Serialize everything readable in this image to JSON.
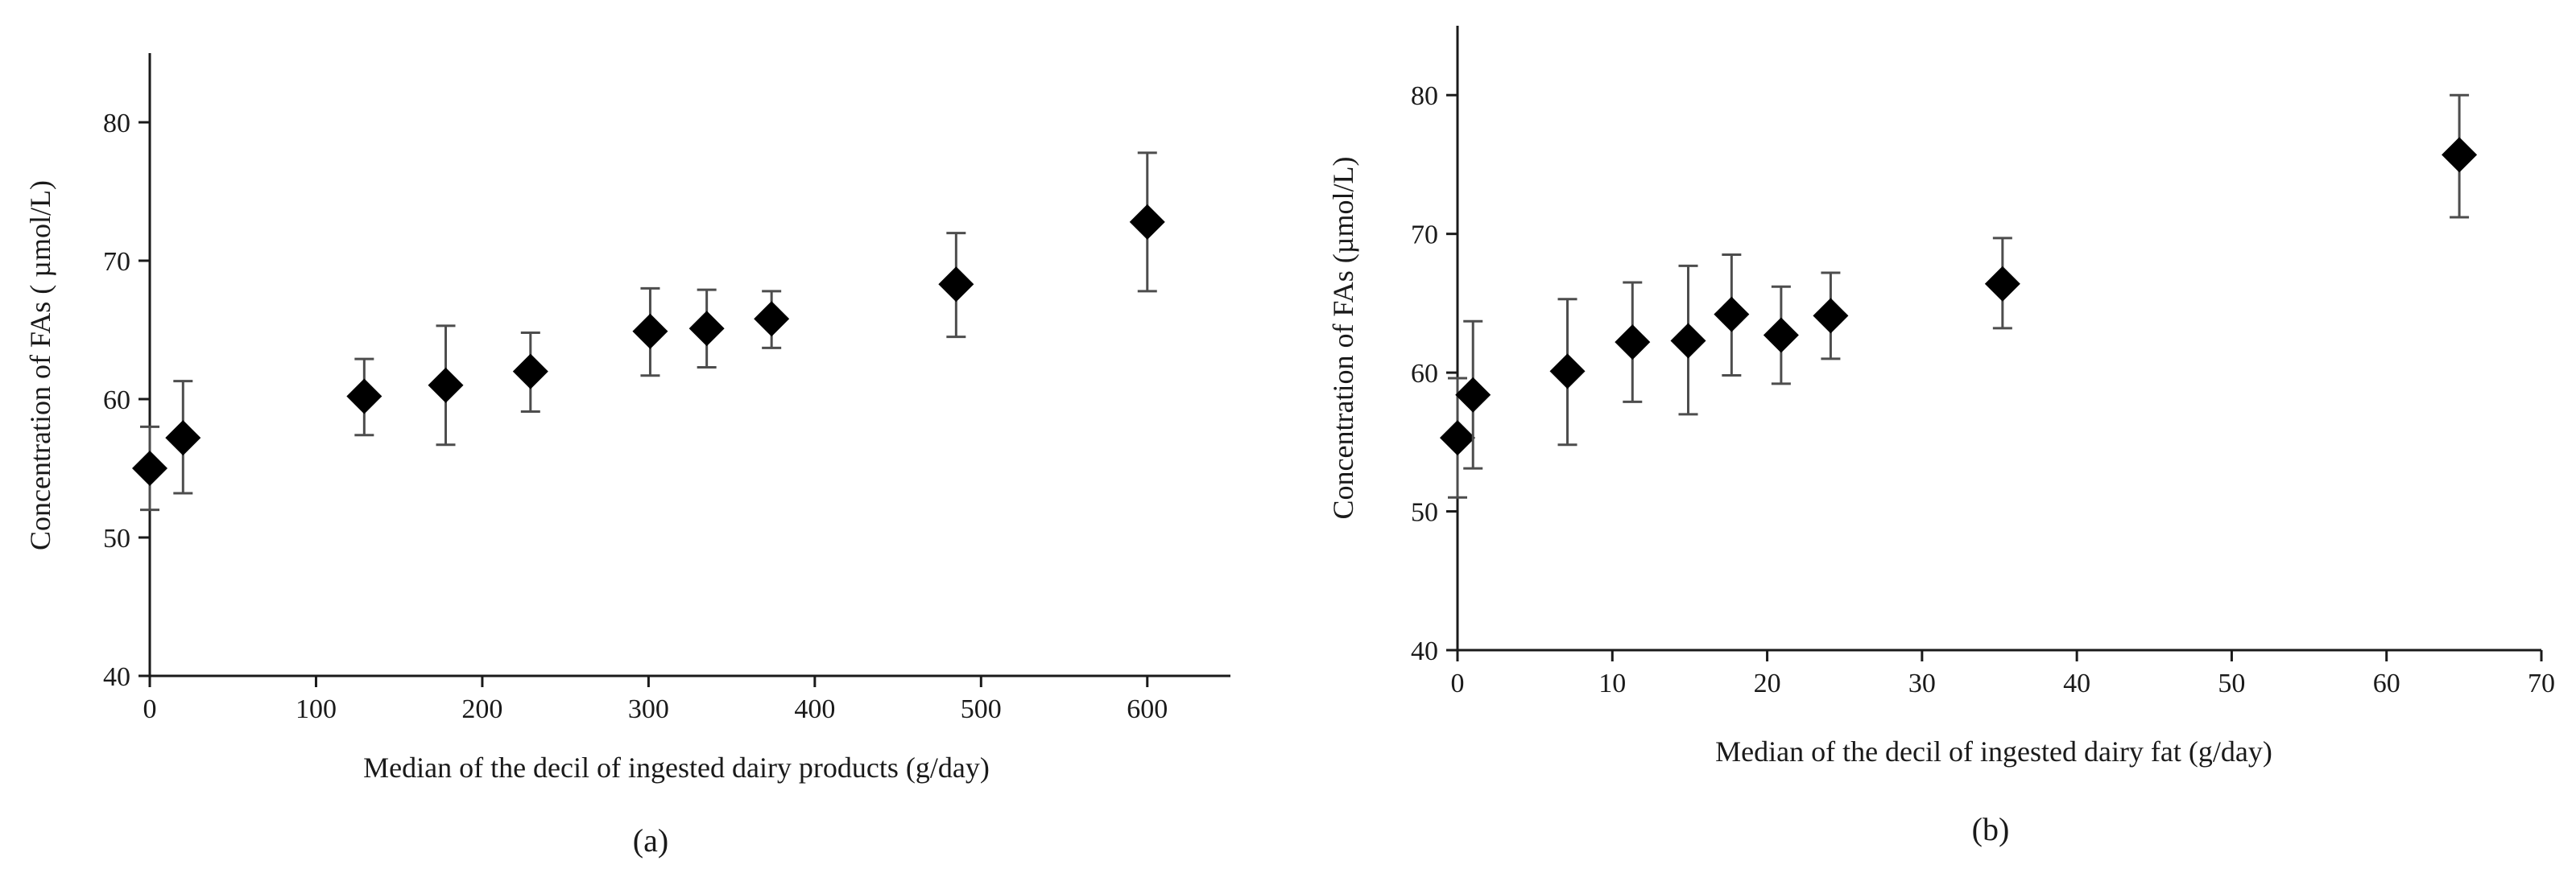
{
  "chart_data": [
    {
      "type": "scatter",
      "panel_label": "(a)",
      "xlabel": "Median of the decil of ingested dairy products (g/day)",
      "ylabel": "Concentration of FAs ( µmol/L)",
      "xlim": [
        0,
        650
      ],
      "ylim": [
        40,
        85
      ],
      "x_ticks": [
        0,
        100,
        200,
        300,
        400,
        500,
        600
      ],
      "y_ticks": [
        40,
        50,
        60,
        70,
        80
      ],
      "marker": "diamond",
      "color": "#000000",
      "points": [
        {
          "x": 0,
          "y": 55.0,
          "err_low": 52.0,
          "err_high": 58.0
        },
        {
          "x": 20,
          "y": 57.2,
          "err_low": 53.2,
          "err_high": 61.3
        },
        {
          "x": 129,
          "y": 60.2,
          "err_low": 57.4,
          "err_high": 62.9
        },
        {
          "x": 178,
          "y": 61.0,
          "err_low": 56.7,
          "err_high": 65.3
        },
        {
          "x": 229,
          "y": 62.0,
          "err_low": 59.1,
          "err_high": 64.8
        },
        {
          "x": 301,
          "y": 64.9,
          "err_low": 61.7,
          "err_high": 68.0
        },
        {
          "x": 335,
          "y": 65.1,
          "err_low": 62.3,
          "err_high": 67.9
        },
        {
          "x": 374,
          "y": 65.8,
          "err_low": 63.7,
          "err_high": 67.8
        },
        {
          "x": 485,
          "y": 68.3,
          "err_low": 64.5,
          "err_high": 72.0
        },
        {
          "x": 600,
          "y": 72.8,
          "err_low": 67.8,
          "err_high": 77.8
        }
      ]
    },
    {
      "type": "scatter",
      "panel_label": "(b)",
      "xlabel": "Median of the decil of ingested dairy fat (g/day)",
      "ylabel": "Concentration of FAs (µmol/L)",
      "xlim": [
        0,
        70
      ],
      "ylim": [
        40,
        85
      ],
      "x_ticks": [
        0,
        10,
        20,
        30,
        40,
        50,
        60,
        70
      ],
      "y_ticks": [
        40,
        50,
        60,
        70,
        80
      ],
      "marker": "diamond",
      "color": "#000000",
      "points": [
        {
          "x": 0,
          "y": 55.3,
          "err_low": 51.0,
          "err_high": 59.6
        },
        {
          "x": 1,
          "y": 58.4,
          "err_low": 53.1,
          "err_high": 63.7
        },
        {
          "x": 7.1,
          "y": 60.1,
          "err_low": 54.8,
          "err_high": 65.3
        },
        {
          "x": 11.3,
          "y": 62.2,
          "err_low": 57.9,
          "err_high": 66.5
        },
        {
          "x": 14.9,
          "y": 62.3,
          "err_low": 57.0,
          "err_high": 67.7
        },
        {
          "x": 17.7,
          "y": 64.2,
          "err_low": 59.8,
          "err_high": 68.5
        },
        {
          "x": 20.9,
          "y": 62.7,
          "err_low": 59.2,
          "err_high": 66.2
        },
        {
          "x": 24.1,
          "y": 64.1,
          "err_low": 61.0,
          "err_high": 67.2
        },
        {
          "x": 35.2,
          "y": 66.4,
          "err_low": 63.2,
          "err_high": 69.7
        },
        {
          "x": 64.7,
          "y": 75.7,
          "err_low": 71.2,
          "err_high": 80.0
        }
      ]
    }
  ]
}
